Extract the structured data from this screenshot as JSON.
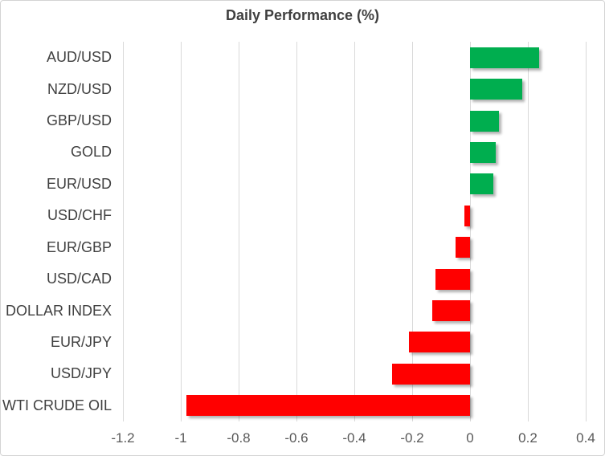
{
  "chart_data": {
    "type": "bar",
    "orientation": "horizontal",
    "title": "Daily Performance (%)",
    "categories": [
      "AUD/USD",
      "NZD/USD",
      "GBP/USD",
      "GOLD",
      "EUR/USD",
      "USD/CHF",
      "EUR/GBP",
      "USD/CAD",
      "DOLLAR INDEX",
      "EUR/JPY",
      "USD/JPY",
      "WTI CRUDE OIL"
    ],
    "values": [
      0.24,
      0.18,
      0.1,
      0.09,
      0.08,
      -0.02,
      -0.05,
      -0.12,
      -0.13,
      -0.21,
      -0.27,
      -0.98
    ],
    "xlabel": "",
    "ylabel": "",
    "xlim": [
      -1.2,
      0.4
    ],
    "xtick_values": [
      -1.2,
      -1,
      -0.8,
      -0.6,
      -0.4,
      -0.2,
      0,
      0.2,
      0.4
    ],
    "xtick_labels": [
      "-1.2",
      "-1",
      "-0.8",
      "-0.6",
      "-0.4",
      "-0.2",
      "0",
      "0.2",
      "0.4"
    ],
    "grid": true,
    "legend": "none",
    "colors": {
      "positive": "#00AE4F",
      "negative": "#FF0000",
      "gridline": "#D9D9D9",
      "title": "#3F3F3F",
      "category_label": "#404040",
      "tick_label": "#595959",
      "border": "#D4D4D4",
      "background": "#FFFFFF"
    }
  }
}
